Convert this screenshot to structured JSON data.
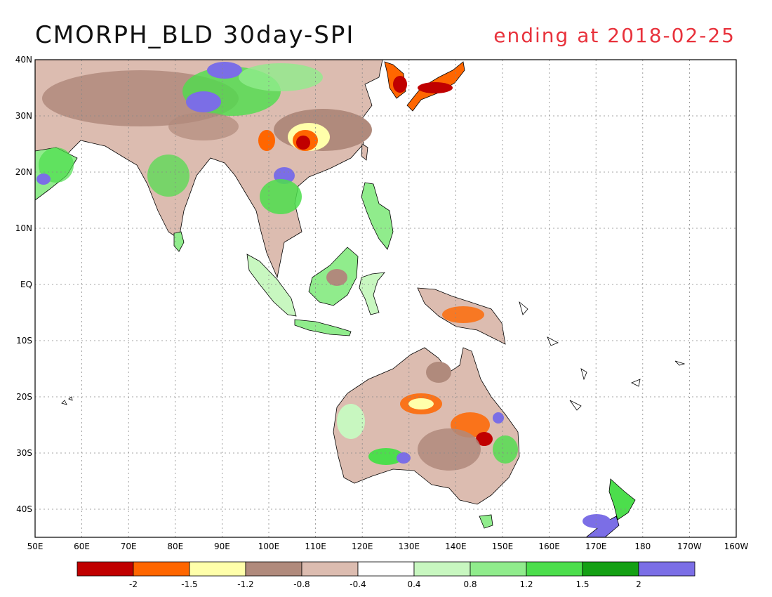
{
  "title": "CMORPH_BLD 30day-SPI",
  "subtitle": "ending at 2018-02-25",
  "colors": {
    "title_text": "#111111",
    "subtitle_text": "#e8323c",
    "coast": "#000000",
    "grid": "#888888"
  },
  "axes": {
    "lon_labels": [
      "50E",
      "60E",
      "70E",
      "80E",
      "90E",
      "100E",
      "110E",
      "120E",
      "130E",
      "140E",
      "150E",
      "160E",
      "170E",
      "180",
      "170W",
      "160W"
    ],
    "lat_labels": [
      "40N",
      "30N",
      "20N",
      "10N",
      "EQ",
      "10S",
      "20S",
      "30S",
      "40S"
    ]
  },
  "legend": {
    "colors": [
      "#c00000",
      "#ff6600",
      "#ffffaa",
      "#b08a7c",
      "#dcbcb0",
      "#ffffff",
      "#c8f7c0",
      "#90ec8c",
      "#4cde4c",
      "#14a014",
      "#7b6ee6"
    ],
    "labels": [
      "-2",
      "-1.5",
      "-1.2",
      "-0.8",
      "-0.4",
      "0.4",
      "0.8",
      "1.2",
      "1.5",
      "2"
    ]
  },
  "map": {
    "lon_range": [
      50,
      200
    ],
    "lat_range": [
      -45,
      40
    ],
    "lon_grid_step": 10,
    "lat_grid_step": 10
  }
}
